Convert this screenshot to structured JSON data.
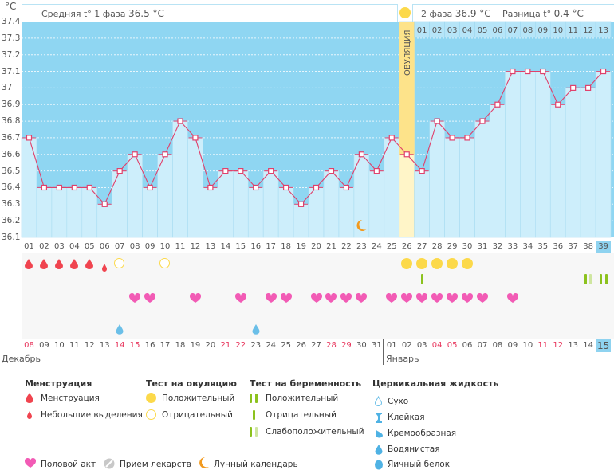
{
  "header": {
    "unit": "°C",
    "phase1_label": "Средняя t° 1 фаза",
    "phase1_value": "36.5 °C",
    "phase2_label": "2 фаза",
    "phase2_value": "36.9 °C",
    "diff_label": "Разница t°",
    "diff_value": "0.4 °C"
  },
  "chart_data": {
    "type": "bar",
    "title": "",
    "ylabel": "°C",
    "ylim": [
      36.1,
      37.4
    ],
    "yticks": [
      "37.4",
      "37.3",
      "37.2",
      "37.1",
      "37",
      "36.9",
      "36.8",
      "36.7",
      "36.6",
      "36.5",
      "36.4",
      "36.3",
      "36.2",
      "36.1"
    ],
    "cycle_days": [
      "01",
      "02",
      "03",
      "04",
      "05",
      "06",
      "07",
      "08",
      "09",
      "10",
      "11",
      "12",
      "13",
      "14",
      "15",
      "16",
      "17",
      "18",
      "19",
      "20",
      "21",
      "22",
      "23",
      "24",
      "25",
      "26",
      "27",
      "28",
      "29",
      "30",
      "31",
      "32",
      "33",
      "34",
      "35",
      "36",
      "37",
      "38",
      "39"
    ],
    "temperatures": [
      36.7,
      36.4,
      36.4,
      36.4,
      36.4,
      36.3,
      36.5,
      36.6,
      36.4,
      36.6,
      36.8,
      36.7,
      36.4,
      36.5,
      36.5,
      36.4,
      36.5,
      36.4,
      36.3,
      36.4,
      36.5,
      36.4,
      36.6,
      36.5,
      36.7,
      36.6,
      36.5,
      36.8,
      36.7,
      36.7,
      36.8,
      36.9,
      37.1,
      37.1,
      37.1,
      36.9,
      37.0,
      37.0,
      37.1
    ],
    "ovulation_day": 26,
    "ovulation_label": "ОВУЛЯЦИЯ",
    "phase2_days": [
      "01",
      "02",
      "03",
      "04",
      "05",
      "06",
      "07",
      "08",
      "09",
      "10",
      "11",
      "12",
      "13"
    ],
    "current_day": "39",
    "moon_day": 23,
    "dates": [
      "08",
      "09",
      "10",
      "11",
      "12",
      "13",
      "14",
      "15",
      "16",
      "17",
      "18",
      "19",
      "20",
      "21",
      "22",
      "23",
      "24",
      "25",
      "26",
      "27",
      "28",
      "29",
      "30",
      "31",
      "01",
      "02",
      "03",
      "04",
      "05",
      "06",
      "07",
      "08",
      "09",
      "10",
      "11",
      "12",
      "13",
      "14",
      "15"
    ],
    "weekend_dates_idx": [
      0,
      6,
      7,
      13,
      14,
      20,
      21,
      27,
      28,
      34,
      35
    ],
    "months": [
      "Декабрь",
      "Январь"
    ],
    "colors": {
      "sky": "#8fd6f2",
      "bar": "#cdeefb",
      "line": "#e0406b",
      "ovulation": "#fde38a",
      "ovulation_light": "#fff5c8"
    }
  },
  "markers": {
    "menstruation_days": [
      1,
      2,
      3,
      4,
      5
    ],
    "spotting_days": [
      6
    ],
    "ovulation_test_negative": [
      7,
      10
    ],
    "ovulation_test_positive": [
      26,
      27,
      28,
      29,
      30
    ],
    "pregnancy_test_negative": [
      27
    ],
    "pregnancy_test_weak": [
      38
    ],
    "pregnancy_test_positive": [
      39
    ],
    "intercourse_days": [
      8,
      9,
      12,
      15,
      17,
      18,
      20,
      21,
      22,
      23,
      25,
      26,
      27,
      28,
      29,
      30,
      31,
      33
    ],
    "cervical_watery_days": [
      7,
      16
    ]
  },
  "legend": {
    "menstruation": {
      "title": "Менструация",
      "items": [
        "Менструация",
        "Небольшие выделения"
      ]
    },
    "ovulation_test": {
      "title": "Тест на овуляцию",
      "items": [
        "Положительный",
        "Отрицательный"
      ]
    },
    "pregnancy_test": {
      "title": "Тест на беременность",
      "items": [
        "Положительный",
        "Отрицательный",
        "Слабоположительный"
      ]
    },
    "cervical": {
      "title": "Цервикальная жидкость",
      "items": [
        "Сухо",
        "Клейкая",
        "Кремообразная",
        "Водянистая",
        "Яичный белок"
      ]
    },
    "bottom": [
      "Половой акт",
      "Прием лекарств",
      "Лунный календарь"
    ]
  }
}
